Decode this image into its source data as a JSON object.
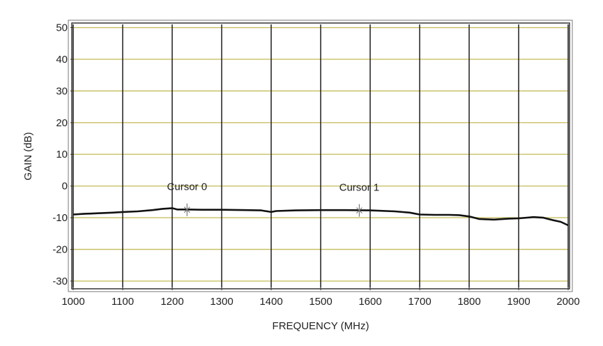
{
  "chart_data": {
    "type": "line",
    "xlabel": "FREQUENCY (MHz)",
    "ylabel": "GAIN (dB)",
    "xlim": [
      1000,
      2000
    ],
    "ylim": [
      -32,
      51
    ],
    "x_ticks": [
      1000,
      1100,
      1200,
      1300,
      1400,
      1500,
      1600,
      1700,
      1800,
      1900,
      2000
    ],
    "y_ticks": [
      50,
      40,
      30,
      20,
      10,
      0,
      -10,
      -20,
      -30
    ],
    "grid": true,
    "colors": {
      "line": "#111111",
      "vgrid": "#2a2a2a",
      "hgrid": "#c8c064",
      "frame": "#777777",
      "cursor": "#777777"
    },
    "series": [
      {
        "x": [
          1000,
          1020,
          1050,
          1080,
          1100,
          1130,
          1160,
          1180,
          1200,
          1210,
          1230,
          1260,
          1300,
          1350,
          1380,
          1400,
          1410,
          1450,
          1500,
          1550,
          1600,
          1650,
          1680,
          1700,
          1730,
          1760,
          1780,
          1800,
          1820,
          1850,
          1880,
          1900,
          1930,
          1950,
          1970,
          1985,
          2000
        ],
        "y": [
          -9.0,
          -8.8,
          -8.6,
          -8.4,
          -8.2,
          -8.0,
          -7.6,
          -7.2,
          -7.0,
          -7.4,
          -7.4,
          -7.5,
          -7.5,
          -7.6,
          -7.7,
          -8.2,
          -7.9,
          -7.7,
          -7.6,
          -7.6,
          -7.7,
          -8.0,
          -8.4,
          -9.0,
          -9.1,
          -9.1,
          -9.2,
          -9.6,
          -10.4,
          -10.6,
          -10.3,
          -10.2,
          -9.8,
          -10.0,
          -10.8,
          -11.3,
          -12.4
        ]
      }
    ],
    "cursors": [
      {
        "label": "Cursor 0",
        "x": 1230,
        "y": -7.5
      },
      {
        "label": "Cursor 1",
        "x": 1578,
        "y": -7.7
      }
    ]
  }
}
